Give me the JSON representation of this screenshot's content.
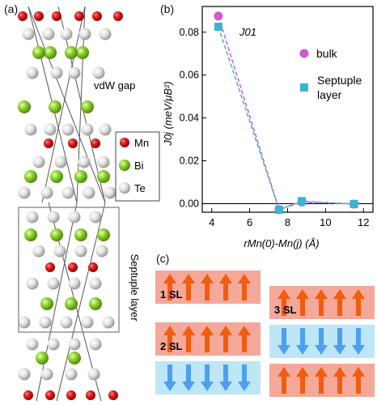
{
  "panel_a": {
    "label": "(a)",
    "vdw_label": "vdW gap",
    "septuple_label": "Septuple layer",
    "legend": [
      {
        "element": "Mn",
        "color": "#e0191b"
      },
      {
        "element": "Bi",
        "color": "#8fd52c"
      },
      {
        "element": "Te",
        "color": "#e6e6e6"
      }
    ]
  },
  "panel_b": {
    "label": "(b)",
    "annotation": "J01"
  },
  "chart_data": {
    "type": "scatter",
    "ylabel": "J0j (meV/μB²)",
    "xlabel": "rMn(0)-Mn(j) (Å)",
    "xlim": [
      3.5,
      12.5
    ],
    "ylim": [
      -0.004,
      0.092
    ],
    "x_ticks": [
      4,
      6,
      8,
      10,
      12
    ],
    "y_ticks": [
      0.0,
      0.02,
      0.04,
      0.06,
      0.08
    ],
    "y_tick_labels": [
      "0.00",
      "0.02",
      "0.04",
      "0.06",
      "0.08"
    ],
    "series": [
      {
        "name": "bulk",
        "color": "#d05ad0",
        "marker": "circle",
        "x": [
          4.35,
          7.55,
          8.75,
          11.5
        ],
        "y": [
          0.0875,
          -0.0028,
          0.0008,
          -0.0002
        ]
      },
      {
        "name": "Septuple layer",
        "name_lines": [
          "Septuple",
          "layer"
        ],
        "color": "#3bb3cf",
        "marker": "square",
        "x": [
          4.35,
          7.55,
          8.75,
          11.5
        ],
        "y": [
          0.0825,
          -0.0028,
          0.0012,
          -0.0002
        ]
      }
    ],
    "zero_line": true
  },
  "panel_c": {
    "label": "(c)",
    "configs": [
      {
        "name": "1 SL",
        "layers": [
          "up"
        ]
      },
      {
        "name": "2 SL",
        "layers": [
          "up",
          "down"
        ]
      },
      {
        "name": "3 SL",
        "layers": [
          "up",
          "down",
          "up"
        ]
      }
    ],
    "colors": {
      "up_bg": "#f4a89a",
      "down_bg": "#bde6f7",
      "up_arrow": "#f25c0e",
      "down_arrow": "#4e9ff1"
    }
  }
}
